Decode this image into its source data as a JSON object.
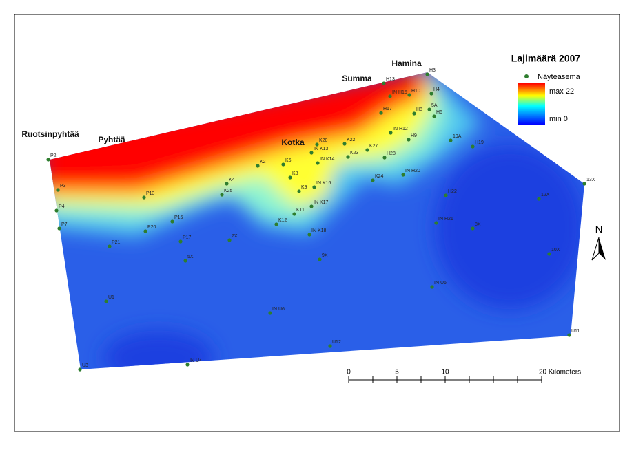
{
  "title": "Lajimäärä 2007",
  "legend": {
    "station": "Näyteasema",
    "max": "max 22",
    "min": "min 0"
  },
  "places": [
    "Ruotsinpyhtää",
    "Pyhtää",
    "Kotka",
    "Summa",
    "Hamina"
  ],
  "stations": [
    "H13",
    "IN H15",
    "H10",
    "H3",
    "H4",
    "5A",
    "H6",
    "H8",
    "H17",
    "IN H12",
    "H9",
    "19A",
    "H19",
    "K20",
    "K22",
    "IN K13",
    "K27",
    "K23",
    "H28",
    "IN K14",
    "K2",
    "K6",
    "IN H20",
    "K8",
    "K24",
    "IN K16",
    "K4",
    "K9",
    "H22",
    "12X",
    "K25",
    "P13",
    "IN K17",
    "K11",
    "P2",
    "P3",
    "P4",
    "P7",
    "K12",
    "P16",
    "IN H21",
    "8X",
    "P20",
    "IN K18",
    "7X",
    "P17",
    "P21",
    "10X",
    "9X",
    "5X",
    "IN U6",
    "U1",
    "IN U6",
    "U11",
    "U12",
    "IN U4",
    "U3",
    "13X"
  ],
  "scale_labels": [
    "0",
    "5",
    "10",
    "20 Kilometers"
  ],
  "north": "N"
}
